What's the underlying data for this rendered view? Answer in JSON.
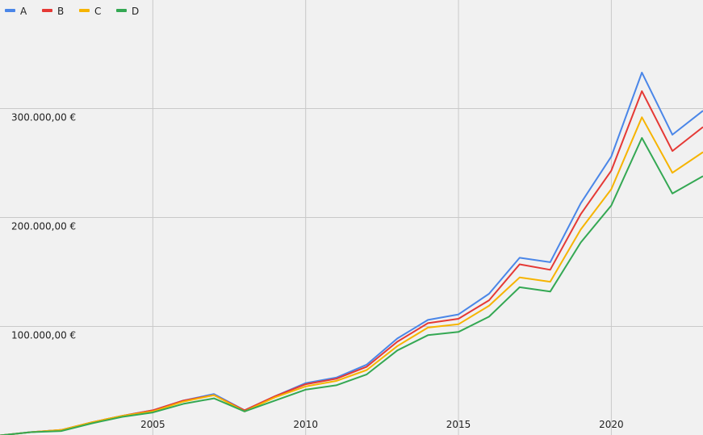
{
  "chart_data": {
    "type": "line",
    "title": "",
    "xlabel": "",
    "ylabel": "",
    "xlim": [
      2000,
      2023
    ],
    "ylim": [
      0,
      400000
    ],
    "x_ticks": [
      {
        "value": 2005,
        "label": "2005"
      },
      {
        "value": 2010,
        "label": "2010"
      },
      {
        "value": 2015,
        "label": "2015"
      },
      {
        "value": 2020,
        "label": "2020"
      }
    ],
    "y_ticks": [
      {
        "value": 100000,
        "label": "100.000,00 €"
      },
      {
        "value": 200000,
        "label": "200.000,00 €"
      },
      {
        "value": 300000,
        "label": "300.000,00 €"
      }
    ],
    "grid": true,
    "legend_position": "top-left",
    "x": [
      2000,
      2001,
      2002,
      2003,
      2004,
      2005,
      2006,
      2007,
      2008,
      2009,
      2010,
      2011,
      2012,
      2013,
      2014,
      2015,
      2016,
      2017,
      2018,
      2019,
      2020,
      2021,
      2022,
      2023
    ],
    "series": [
      {
        "name": "A",
        "color": "#4a86e8",
        "values": [
          0,
          3000,
          5000,
          12000,
          18000,
          23000,
          32000,
          38000,
          23000,
          36000,
          48000,
          53000,
          65000,
          89000,
          106000,
          111000,
          130000,
          163000,
          159000,
          213000,
          256000,
          333000,
          276000,
          298000
        ]
      },
      {
        "name": "B",
        "color": "#e53935",
        "values": [
          0,
          3000,
          5000,
          12000,
          18000,
          23000,
          32000,
          37000,
          23000,
          36000,
          47000,
          52000,
          63000,
          86000,
          103000,
          107000,
          124000,
          157000,
          152000,
          203000,
          243000,
          316000,
          261000,
          283000
        ]
      },
      {
        "name": "C",
        "color": "#f6b400",
        "values": [
          0,
          3000,
          5000,
          12000,
          18000,
          22000,
          31000,
          37000,
          22000,
          35000,
          45000,
          50000,
          60000,
          82000,
          99000,
          102000,
          119000,
          145000,
          141000,
          189000,
          226000,
          292000,
          241000,
          260000
        ]
      },
      {
        "name": "D",
        "color": "#34a853",
        "values": [
          0,
          3000,
          4000,
          11000,
          17000,
          21000,
          29000,
          34000,
          22000,
          32000,
          42000,
          46000,
          56000,
          78000,
          92000,
          95000,
          109000,
          136000,
          132000,
          177000,
          211000,
          273000,
          222000,
          238000
        ]
      }
    ]
  }
}
